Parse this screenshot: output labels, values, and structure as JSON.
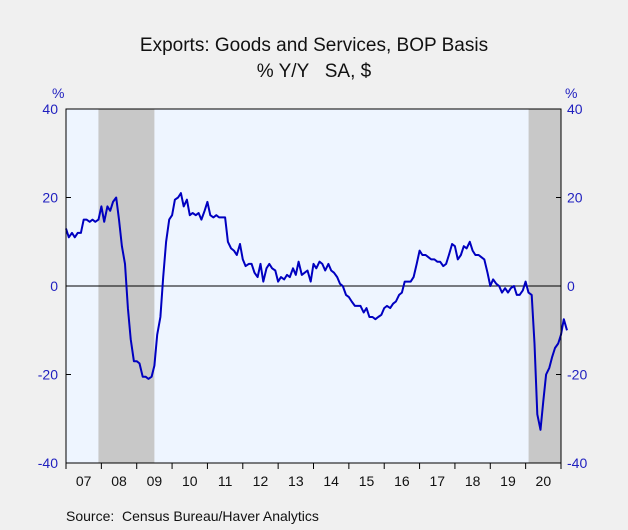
{
  "chart_data": {
    "type": "line",
    "title": "Exports: Goods and Services, BOP Basis",
    "subtitle": "% Y/Y   SA, $",
    "ylabel_left": "%",
    "ylabel_right": "%",
    "source": "Source:  Census Bureau/Haver Analytics",
    "ylim": [
      -40,
      40
    ],
    "yticks": [
      40,
      20,
      0,
      -20,
      -40
    ],
    "ytick_labels": [
      "40",
      "20",
      "0",
      "-20",
      "-40"
    ],
    "x_categories": [
      "07",
      "08",
      "09",
      "10",
      "11",
      "12",
      "13",
      "14",
      "15",
      "16",
      "17",
      "18",
      "19",
      "20"
    ],
    "x_start_year": 2007,
    "x_end_year": 2021,
    "zero_line": true,
    "recession_bands": [
      [
        2007.917,
        2009.5
      ],
      [
        2020.083,
        2021.25
      ]
    ],
    "colors": {
      "plot_background": "#eef5ff",
      "outer_background": "#f0f0f0",
      "recession": "#c8c8c8",
      "line": "#0000c0",
      "axis_text": "#1f1fbf"
    },
    "series": [
      {
        "values": [
          [
            2007.0,
            13
          ],
          [
            2007.08,
            11
          ],
          [
            2007.17,
            12
          ],
          [
            2007.25,
            11
          ],
          [
            2007.33,
            12
          ],
          [
            2007.42,
            12
          ],
          [
            2007.5,
            15
          ],
          [
            2007.58,
            15
          ],
          [
            2007.67,
            14.5
          ],
          [
            2007.75,
            15
          ],
          [
            2007.83,
            14.5
          ],
          [
            2007.92,
            15
          ],
          [
            2008.0,
            18
          ],
          [
            2008.08,
            14.5
          ],
          [
            2008.17,
            18
          ],
          [
            2008.25,
            17
          ],
          [
            2008.33,
            19
          ],
          [
            2008.42,
            20
          ],
          [
            2008.5,
            15
          ],
          [
            2008.58,
            9
          ],
          [
            2008.67,
            5
          ],
          [
            2008.75,
            -5
          ],
          [
            2008.83,
            -12
          ],
          [
            2008.92,
            -17
          ],
          [
            2009.0,
            -17
          ],
          [
            2009.08,
            -17.5
          ],
          [
            2009.17,
            -20.5
          ],
          [
            2009.25,
            -20.5
          ],
          [
            2009.33,
            -21
          ],
          [
            2009.42,
            -20.5
          ],
          [
            2009.5,
            -18
          ],
          [
            2009.58,
            -11
          ],
          [
            2009.67,
            -7
          ],
          [
            2009.75,
            2
          ],
          [
            2009.83,
            10
          ],
          [
            2009.92,
            15
          ],
          [
            2010.0,
            16
          ],
          [
            2010.08,
            19.5
          ],
          [
            2010.17,
            20
          ],
          [
            2010.25,
            21
          ],
          [
            2010.33,
            18
          ],
          [
            2010.42,
            19.5
          ],
          [
            2010.5,
            16
          ],
          [
            2010.58,
            16.5
          ],
          [
            2010.67,
            16
          ],
          [
            2010.75,
            16.5
          ],
          [
            2010.83,
            15
          ],
          [
            2010.92,
            17
          ],
          [
            2011.0,
            19
          ],
          [
            2011.08,
            16
          ],
          [
            2011.17,
            15.5
          ],
          [
            2011.25,
            16
          ],
          [
            2011.33,
            15.5
          ],
          [
            2011.42,
            15.5
          ],
          [
            2011.5,
            15.5
          ],
          [
            2011.58,
            10
          ],
          [
            2011.67,
            8.5
          ],
          [
            2011.75,
            8
          ],
          [
            2011.83,
            7
          ],
          [
            2011.92,
            9.5
          ],
          [
            2012.0,
            6
          ],
          [
            2012.08,
            4.5
          ],
          [
            2012.17,
            5
          ],
          [
            2012.25,
            5
          ],
          [
            2012.33,
            3
          ],
          [
            2012.42,
            2
          ],
          [
            2012.5,
            5
          ],
          [
            2012.58,
            1
          ],
          [
            2012.67,
            4
          ],
          [
            2012.75,
            5
          ],
          [
            2012.83,
            4
          ],
          [
            2012.92,
            3.5
          ],
          [
            2013.0,
            1
          ],
          [
            2013.08,
            2
          ],
          [
            2013.17,
            1.5
          ],
          [
            2013.25,
            2.5
          ],
          [
            2013.33,
            2
          ],
          [
            2013.42,
            4
          ],
          [
            2013.5,
            2.5
          ],
          [
            2013.58,
            5.5
          ],
          [
            2013.67,
            2.5
          ],
          [
            2013.75,
            3
          ],
          [
            2013.83,
            3.5
          ],
          [
            2013.92,
            1
          ],
          [
            2014.0,
            5
          ],
          [
            2014.08,
            4
          ],
          [
            2014.17,
            5.5
          ],
          [
            2014.25,
            5
          ],
          [
            2014.33,
            3.5
          ],
          [
            2014.42,
            5
          ],
          [
            2014.5,
            3.5
          ],
          [
            2014.58,
            3
          ],
          [
            2014.67,
            2
          ],
          [
            2014.75,
            0.5
          ],
          [
            2014.83,
            0
          ],
          [
            2014.92,
            -2
          ],
          [
            2015.0,
            -2.5
          ],
          [
            2015.08,
            -3.5
          ],
          [
            2015.17,
            -4.5
          ],
          [
            2015.25,
            -4.5
          ],
          [
            2015.33,
            -4.5
          ],
          [
            2015.42,
            -6
          ],
          [
            2015.5,
            -5
          ],
          [
            2015.58,
            -7
          ],
          [
            2015.67,
            -7
          ],
          [
            2015.75,
            -7.5
          ],
          [
            2015.83,
            -7
          ],
          [
            2015.92,
            -6.5
          ],
          [
            2016.0,
            -5
          ],
          [
            2016.08,
            -4.5
          ],
          [
            2016.17,
            -5
          ],
          [
            2016.25,
            -4
          ],
          [
            2016.33,
            -3.5
          ],
          [
            2016.42,
            -2
          ],
          [
            2016.5,
            -1.5
          ],
          [
            2016.58,
            1
          ],
          [
            2016.67,
            1
          ],
          [
            2016.75,
            1
          ],
          [
            2016.83,
            2
          ],
          [
            2016.92,
            5
          ],
          [
            2017.0,
            8
          ],
          [
            2017.08,
            7
          ],
          [
            2017.17,
            7
          ],
          [
            2017.25,
            6.5
          ],
          [
            2017.33,
            6
          ],
          [
            2017.42,
            6
          ],
          [
            2017.5,
            5.5
          ],
          [
            2017.58,
            5.5
          ],
          [
            2017.67,
            4.5
          ],
          [
            2017.75,
            5
          ],
          [
            2017.83,
            7
          ],
          [
            2017.92,
            9.5
          ],
          [
            2018.0,
            9
          ],
          [
            2018.08,
            6
          ],
          [
            2018.17,
            7
          ],
          [
            2018.25,
            9
          ],
          [
            2018.33,
            8.5
          ],
          [
            2018.42,
            10
          ],
          [
            2018.5,
            8
          ],
          [
            2018.58,
            7
          ],
          [
            2018.67,
            7
          ],
          [
            2018.75,
            6.5
          ],
          [
            2018.83,
            6
          ],
          [
            2018.92,
            3
          ],
          [
            2019.0,
            0
          ],
          [
            2019.08,
            1.5
          ],
          [
            2019.17,
            0.5
          ],
          [
            2019.25,
            0
          ],
          [
            2019.33,
            -1.5
          ],
          [
            2019.42,
            -0.5
          ],
          [
            2019.5,
            -1.5
          ],
          [
            2019.58,
            -0.5
          ],
          [
            2019.67,
            0
          ],
          [
            2019.75,
            -2
          ],
          [
            2019.83,
            -2
          ],
          [
            2019.92,
            -1
          ],
          [
            2020.0,
            1
          ],
          [
            2020.08,
            -1.5
          ],
          [
            2020.17,
            -2
          ],
          [
            2020.25,
            -13
          ],
          [
            2020.33,
            -29
          ],
          [
            2020.42,
            -32.5
          ],
          [
            2020.5,
            -26
          ],
          [
            2020.58,
            -20
          ],
          [
            2020.67,
            -18.5
          ],
          [
            2020.75,
            -16
          ],
          [
            2020.83,
            -14
          ],
          [
            2020.92,
            -13
          ],
          [
            2021.0,
            -11
          ],
          [
            2021.08,
            -7.5
          ],
          [
            2021.17,
            -10
          ]
        ]
      }
    ]
  }
}
